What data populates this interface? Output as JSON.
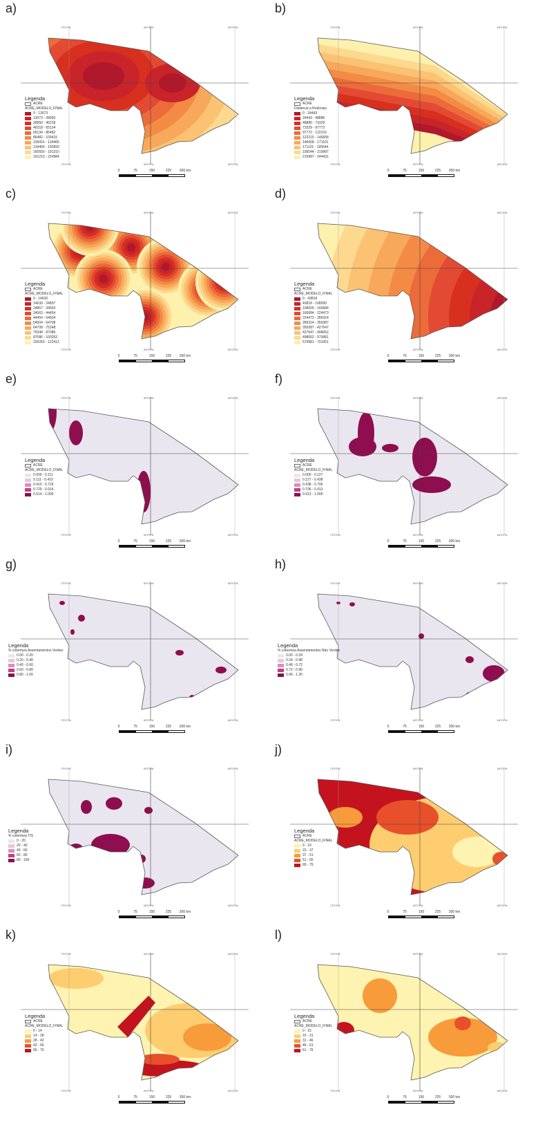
{
  "panels": [
    {
      "label": "a)",
      "legend_title": "Legenda",
      "legend_field": "ACRE_MODELO_FINAL",
      "classes": [
        "0 - 13073",
        "13073 - 28950",
        "28950 - 46218",
        "46218 - 65134",
        "65134 - 86482",
        "86482 - 109415",
        "109415 - 134465",
        "134465 - 160550",
        "160550 - 191210",
        "191210 - 224984"
      ]
    },
    {
      "label": "b)",
      "legend_title": "Legenda",
      "legend_field": "Distância a Rodovias",
      "classes": [
        "0 - 24443",
        "24443 - 48886",
        "48886 - 73329",
        "73329 - 97772",
        "97772 - 122215",
        "122215 - 146658",
        "146658 - 171101",
        "171101 - 195544",
        "195544 - 219987",
        "219987 - 244431"
      ]
    },
    {
      "label": "c)",
      "legend_title": "Legenda",
      "legend_field": "ACRE_MODELO_FINAL",
      "classes": [
        "0 - 14630",
        "14630 - 24857",
        "24857 - 34563",
        "34563 - 44454",
        "44454 - 54504",
        "54504 - 64708",
        "64708 - 75348",
        "75348 - 87086",
        "87086 - 100263",
        "100263 - 122412"
      ]
    },
    {
      "label": "d)",
      "legend_title": "Legenda",
      "legend_field": "ACRE_MODELO_FINAL",
      "classes": [
        "0 - 43818",
        "43818 - 108000",
        "108000 - 166684",
        "166684 - 224473",
        "224473 - 289314",
        "289314 - 359387",
        "359387 - 427647",
        "427647 - 498052",
        "498052 - 579981",
        "579981 - 701051"
      ]
    },
    {
      "label": "e)",
      "legend_title": "Legenda",
      "legend_field": "ACRE_MODELO_FINAL",
      "classes": [
        "0.000 - 0.111",
        "0.111 - 0.410",
        "0.410 - 0.729",
        "0.729 - 0.914",
        "0.914 - 1.000"
      ]
    },
    {
      "label": "f)",
      "legend_title": "Legenda",
      "legend_field": "ACRE_MODELO_FINAL",
      "classes": [
        "0.000 - 0.127",
        "0.127 - 0.438",
        "0.438 - 0.706",
        "0.706 - 0.913",
        "0.913 - 1.005"
      ]
    },
    {
      "label": "g)",
      "legend_title": "Legenda",
      "legend_field": "% cobertura Assentamentos Verdes",
      "classes": [
        "0.00 - 0.20",
        "0.20 - 0.40",
        "0.40 - 0.60",
        "0.60 - 0.80",
        "0.80 - 1.00"
      ]
    },
    {
      "label": "h)",
      "legend_title": "Legenda",
      "legend_field": "% cobertura Assentamentos Não Verdes",
      "classes": [
        "0.00 - 0.24",
        "0.24 - 0.48",
        "0.48 - 0.72",
        "0.72 - 0.96",
        "0.96 - 1.20"
      ]
    },
    {
      "label": "i)",
      "legend_title": "Legenda",
      "legend_field": "% cobertura TIS",
      "classes": [
        "0 - 20",
        "20 - 40",
        "40 - 60",
        "60 - 80",
        "80 - 100"
      ]
    },
    {
      "label": "j)",
      "legend_title": "Legenda",
      "legend_field": "ACRE_MODELO_FINAL",
      "classes": [
        "9 - 23",
        "23 - 37",
        "37 - 51",
        "51 - 65",
        "65 - 79"
      ]
    },
    {
      "label": "k)",
      "legend_title": "Legenda",
      "legend_field": "ACRE_MODELO_FINAL",
      "classes": [
        "0 - 14",
        "14 - 28",
        "28 - 42",
        "42 - 56",
        "56 - 70"
      ]
    },
    {
      "label": "l)",
      "legend_title": "Legenda",
      "legend_field": "ACRE_MODELO_FINAL",
      "classes": [
        "0 - 15",
        "15 - 31",
        "31 - 46",
        "46 - 61",
        "61 - 76"
      ]
    }
  ],
  "acre_label": "ACRE",
  "scalebar": {
    "ticks": [
      "0",
      "75",
      "150",
      "225",
      "300 km"
    ]
  },
  "coords": {
    "lon_a": "73°0'0\"W",
    "lon_b": "69°0'0\"W",
    "lon_c": "66°0'0\"W",
    "lat": "10°0'0\"S"
  },
  "palettes": {
    "ylorrd10": [
      "#b2182b",
      "#c8242a",
      "#d7301f",
      "#e34a33",
      "#ec6b3a",
      "#f38b45",
      "#f7a85a",
      "#fac272",
      "#fcd98f",
      "#fef0ad"
    ],
    "purple5": [
      "#eae6ef",
      "#e7c6dd",
      "#d98ebf",
      "#c0407f",
      "#8e0e4f"
    ],
    "ylorrd5": [
      "#fef3b0",
      "#fdcd70",
      "#f89b3a",
      "#e7502a",
      "#c4131e"
    ]
  }
}
